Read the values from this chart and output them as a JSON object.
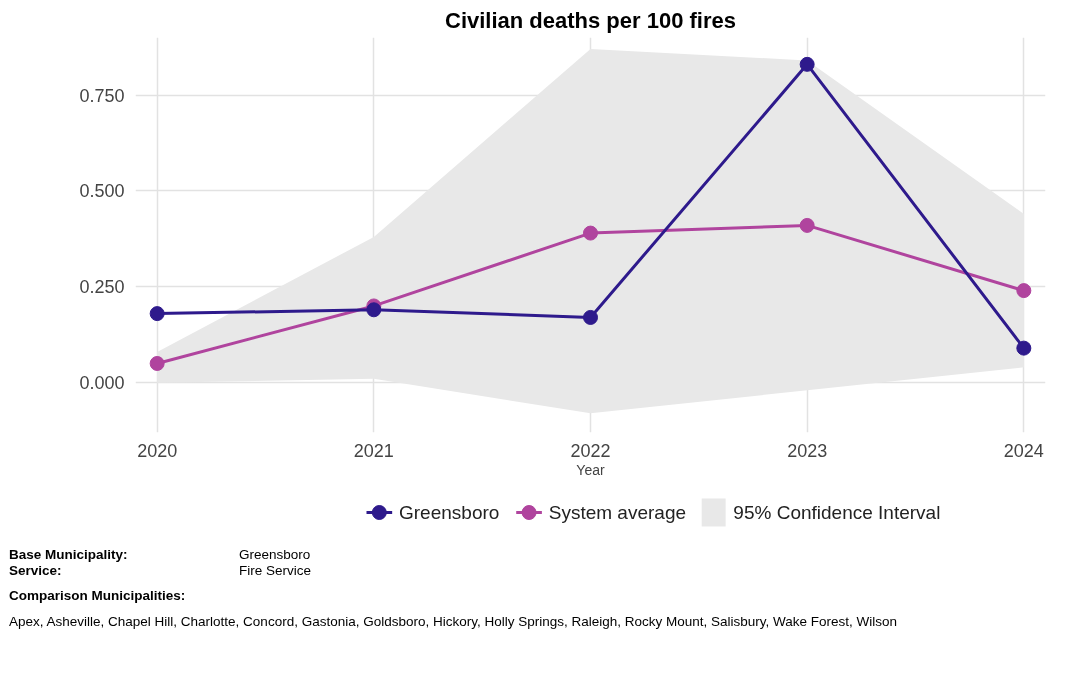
{
  "chart_data": {
    "type": "line",
    "title": "Civilian deaths per 100 fires",
    "xlabel": "Year",
    "x": [
      2020,
      2021,
      2022,
      2023,
      2024
    ],
    "xlim": [
      2019.9,
      2024.1
    ],
    "xticks": [
      2020,
      2021,
      2022,
      2023,
      2024
    ],
    "ylim": [
      -0.13,
      0.9
    ],
    "yticks": [
      {
        "value": 0,
        "label": "0.000"
      },
      {
        "value": 0.25,
        "label": "0.250"
      },
      {
        "value": 0.5,
        "label": "0.500"
      },
      {
        "value": 0.75,
        "label": "0.750"
      }
    ],
    "series": [
      {
        "name": "Greensboro",
        "color": "#2e1a8c",
        "values": [
          0.18,
          0.19,
          0.17,
          0.83,
          0.09
        ]
      },
      {
        "name": "System average",
        "color": "#b0449e",
        "values": [
          0.05,
          0.2,
          0.39,
          0.41,
          0.24
        ]
      },
      {
        "name": "95% Confidence Interval",
        "type": "area",
        "color": "#e8e8e8",
        "values": [
          null,
          null,
          null,
          null,
          null
        ],
        "lower": [
          0.0,
          0.01,
          -0.08,
          -0.02,
          0.04
        ],
        "upper": [
          0.08,
          0.38,
          0.87,
          0.84,
          0.44
        ]
      }
    ],
    "marker": "circle",
    "grid": true,
    "legend": "bottom",
    "annotations": [
      "Base Municipality:",
      "Greensboro",
      "Service:",
      "Fire Service",
      "Comparison Municipalities:",
      "Apex, Asheville, Chapel Hill, Charlotte, Concord, Gastonia, Goldsboro, Hickory, Holly Springs, Raleigh, Rocky Mount, Salisbury, Wake Forest, Wilson"
    ]
  }
}
